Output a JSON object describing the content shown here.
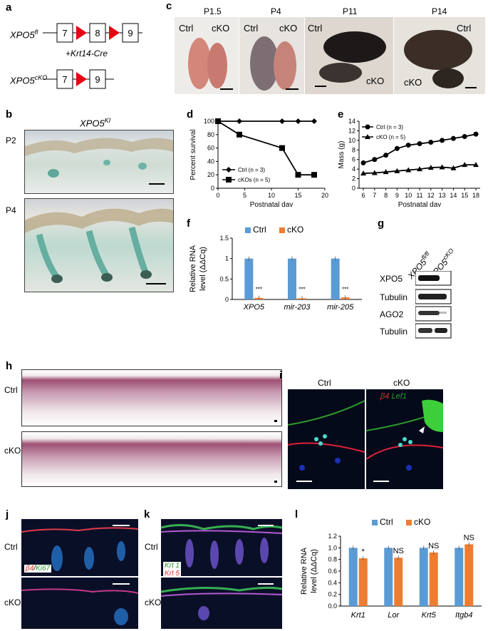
{
  "panels": {
    "a": {
      "label": "a",
      "fl": "XPO5",
      "fl_sup": "fl",
      "ko": "XPO5",
      "ko_sup": "cKO",
      "cre": "+Krt14-Cre",
      "exons_fl": [
        "7",
        "8",
        "9"
      ],
      "exons_ko": [
        "7",
        "9"
      ]
    },
    "b": {
      "label": "b",
      "title": "XPO5",
      "title_sup": "KI",
      "rows": [
        "P2",
        "P4"
      ]
    },
    "c": {
      "label": "c",
      "ages": [
        "P1.5",
        "P4",
        "P11",
        "P14"
      ],
      "ctrl": "Ctrl",
      "cko": "cKO"
    },
    "d": {
      "label": "d"
    },
    "e": {
      "label": "e"
    },
    "f": {
      "label": "f"
    },
    "g": {
      "label": "g",
      "col1": "XPO5",
      "col1_sup": "fl/fl",
      "col2": "XPO5",
      "col2_sup": "cKO",
      "rows": [
        "XPO5",
        "Tubulin",
        "AGO2",
        "Tubulin"
      ]
    },
    "h": {
      "label": "h",
      "rows": [
        "Ctrl",
        "cKO"
      ]
    },
    "i": {
      "label": "i",
      "cols": [
        "Ctrl",
        "cKO"
      ],
      "stain1": "β4",
      "stain2": "Lef1"
    },
    "j": {
      "label": "j",
      "rows": [
        "Ctrl",
        "cKO"
      ],
      "stain1": "β4",
      "stain2": "Ki67"
    },
    "k": {
      "label": "k",
      "rows": [
        "Ctrl",
        "cKO"
      ],
      "stain1": "Krt 1",
      "stain2": "Krt 5"
    },
    "l": {
      "label": "l"
    }
  },
  "chart_data": [
    {
      "id": "d",
      "type": "line",
      "xlabel": "Postnatal day",
      "ylabel": "Percent survival",
      "xlim": [
        0,
        20
      ],
      "ylim": [
        0,
        100
      ],
      "xticks": [
        0,
        5,
        10,
        15,
        20
      ],
      "yticks": [
        0,
        20,
        40,
        60,
        80,
        100
      ],
      "legend_position": "bottom-left",
      "series": [
        {
          "name": "Ctrl (n = 3)",
          "marker": "diamond",
          "x": [
            0,
            4,
            12,
            15,
            18
          ],
          "y": [
            100,
            100,
            100,
            100,
            100
          ]
        },
        {
          "name": "cKOs (n = 5)",
          "marker": "square",
          "x": [
            0,
            4,
            12,
            15,
            18
          ],
          "y": [
            100,
            80,
            60,
            20,
            20
          ]
        }
      ]
    },
    {
      "id": "e",
      "type": "line",
      "xlabel": "Postnatal day",
      "ylabel": "Mass (g)",
      "ylim": [
        0,
        14
      ],
      "yticks": [
        0,
        2,
        4,
        6,
        8,
        10,
        12,
        14
      ],
      "categories": [
        "6",
        "7",
        "8",
        "9",
        "10",
        "11",
        "12",
        "13",
        "14",
        "15",
        "18"
      ],
      "legend_position": "top-left",
      "series": [
        {
          "name": "Ctrl (n = 3)",
          "marker": "circle",
          "values": [
            5.3,
            6.0,
            6.9,
            8.3,
            9.0,
            9.3,
            9.6,
            10.0,
            10.4,
            10.8,
            11.3
          ]
        },
        {
          "name": "cKO (n = 5)",
          "marker": "triangle",
          "values": [
            3.1,
            3.2,
            3.4,
            3.6,
            3.8,
            4.0,
            4.3,
            4.4,
            4.2,
            4.9,
            4.9
          ]
        }
      ]
    },
    {
      "id": "f",
      "type": "bar",
      "ylabel": "Relative RNA level (ΔΔCq)",
      "ylim": [
        0,
        1.5
      ],
      "yticks": [
        "0",
        "0.5",
        "1",
        "1.5"
      ],
      "categories": [
        "XPO5",
        "mir-203",
        "mir-205"
      ],
      "legend_position": "top",
      "series": [
        {
          "name": "Ctrl",
          "color": "#5b9bd5",
          "values": [
            1,
            1,
            1
          ]
        },
        {
          "name": "cKO",
          "color": "#ed7d31",
          "values": [
            0.04,
            0.03,
            0.05
          ]
        }
      ],
      "annotations": [
        "***",
        "***",
        "***"
      ]
    },
    {
      "id": "l",
      "type": "bar",
      "ylabel": "Relative RNA level (ΔΔCq)",
      "ylim": [
        0,
        1.2
      ],
      "yticks": [
        "0.0",
        "0.2",
        "0.4",
        "0.6",
        "0.8",
        "1.0",
        "1.2"
      ],
      "categories": [
        "Krt1",
        "Lor",
        "Krt5",
        "Itgb4"
      ],
      "legend_position": "top",
      "series": [
        {
          "name": "Ctrl",
          "color": "#5b9bd5",
          "values": [
            1.0,
            1.0,
            1.0,
            1.0
          ]
        },
        {
          "name": "cKO",
          "color": "#ed7d31",
          "values": [
            0.82,
            0.83,
            0.92,
            1.06
          ]
        }
      ],
      "annotations": [
        "*",
        "NS",
        "NS",
        "NS"
      ]
    }
  ]
}
